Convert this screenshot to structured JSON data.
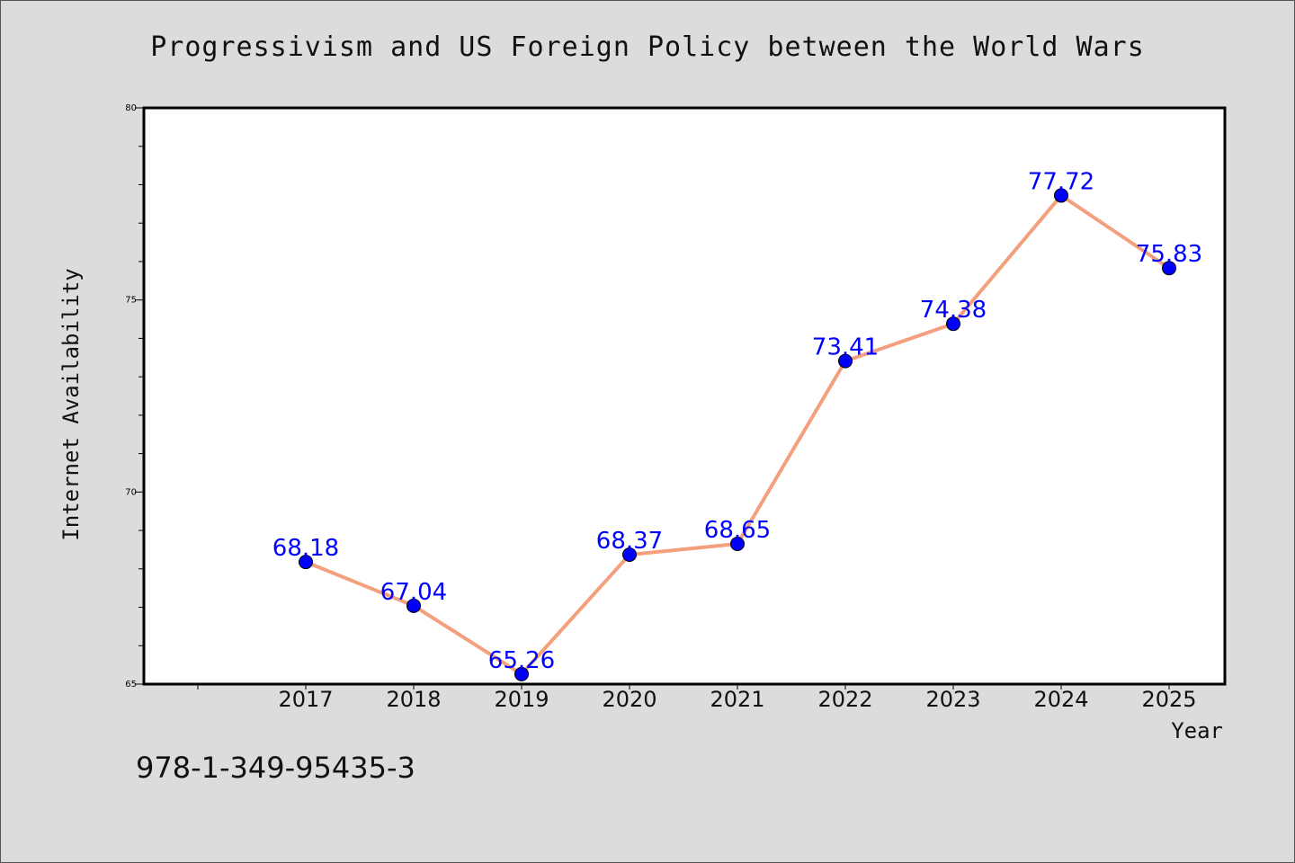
{
  "chart_data": {
    "type": "line",
    "title": "Progressivism and US Foreign Policy between the World Wars",
    "xlabel": "Year",
    "ylabel": "Internet Availability",
    "categories": [
      "2017",
      "2018",
      "2019",
      "2020",
      "2021",
      "2022",
      "2023",
      "2024",
      "2025"
    ],
    "series": [
      {
        "values": [
          68.18,
          67.04,
          65.26,
          68.37,
          68.65,
          73.41,
          74.38,
          77.72,
          75.83
        ],
        "labels": [
          "68.18",
          "67.04",
          "65.26",
          "68.37",
          "68.65",
          "73.41",
          "74.38",
          "77.72",
          "75.83"
        ]
      }
    ],
    "ylim": [
      65,
      80
    ],
    "yticks": [
      "65",
      "70",
      "75",
      "80"
    ],
    "grid": false,
    "legend": "none",
    "line_color": "#f4a07e",
    "marker_color": "#0000ff",
    "label_color": "#0000ff"
  },
  "annotation": "978-1-349-95435-3"
}
